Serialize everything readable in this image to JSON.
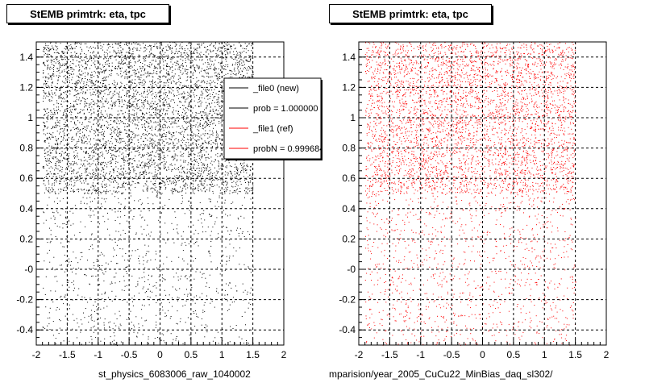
{
  "chart_data": [
    {
      "type": "scatter",
      "title": "StEMB primtrk: eta, tpc",
      "xlabel": "st_physics_6083006_raw_1040002",
      "ylabel": "",
      "xlim": [
        -2,
        2
      ],
      "ylim": [
        -0.5,
        1.5
      ],
      "x_ticks": [
        "-2",
        "-1.5",
        "-1",
        "-0.5",
        "0",
        "0.5",
        "1",
        "1.5",
        "2"
      ],
      "y_ticks": [
        "-0.4",
        "-0.2",
        "-0",
        "0.2",
        "0.4",
        "0.6",
        "0.8",
        "1",
        "1.2",
        "1.4"
      ],
      "grid": true,
      "marker_color": "#000000",
      "density": {
        "dense_region": {
          "x": [
            -1.9,
            1.5
          ],
          "y": [
            0.5,
            1.5
          ]
        },
        "sparse_region": {
          "x": [
            -1.9,
            1.5
          ],
          "y": [
            -0.5,
            0.5
          ]
        }
      },
      "legend": {
        "placement": "top-right",
        "entries": [
          {
            "label": "_file0 (new)",
            "color": "#000000"
          },
          {
            "label": "prob = 1.000000",
            "color": "#000000"
          },
          {
            "label": "_file1 (ref)",
            "color": "#ff0000"
          },
          {
            "label": "probN = 0.999684",
            "color": "#ff0000"
          }
        ]
      }
    },
    {
      "type": "scatter",
      "title": "StEMB primtrk: eta, tpc",
      "xlabel": "mparision/year_2005_CuCu22_MinBias_daq_sl302/",
      "ylabel": "",
      "xlim": [
        -2,
        2
      ],
      "ylim": [
        -0.5,
        1.5
      ],
      "x_ticks": [
        "-2",
        "-1.5",
        "-1",
        "-0.5",
        "0",
        "0.5",
        "1",
        "1.5",
        "2"
      ],
      "y_ticks": [
        "-0.4",
        "-0.2",
        "-0",
        "0.2",
        "0.4",
        "0.6",
        "0.8",
        "1",
        "1.2",
        "1.4"
      ],
      "grid": true,
      "marker_color": "#ff0000",
      "density": {
        "dense_region": {
          "x": [
            -1.9,
            1.5
          ],
          "y": [
            0.5,
            1.5
          ]
        },
        "sparse_region": {
          "x": [
            -1.9,
            1.5
          ],
          "y": [
            -0.5,
            0.5
          ]
        }
      }
    }
  ]
}
